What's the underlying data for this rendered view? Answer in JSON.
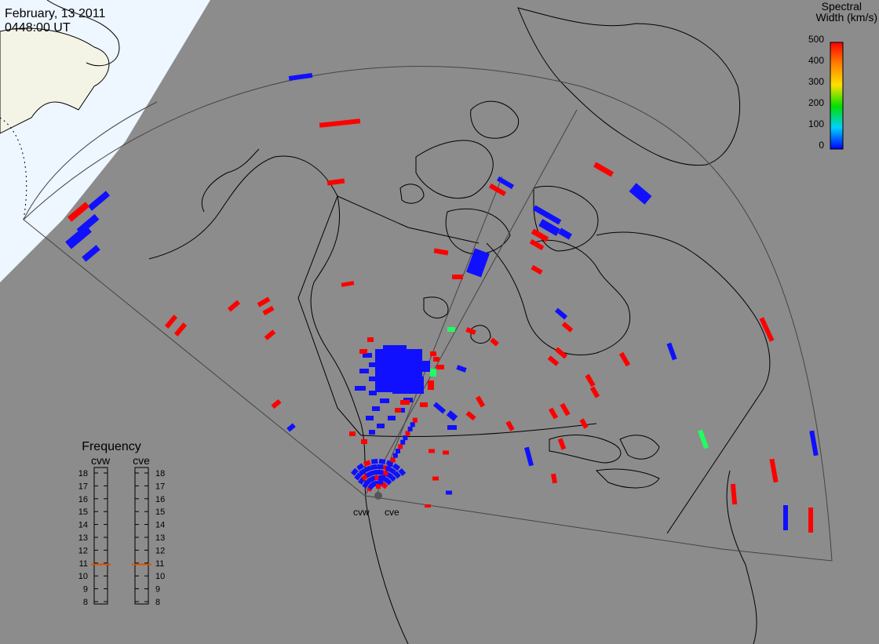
{
  "header": {
    "date": "February, 13 2011",
    "time": "0448:00 UT"
  },
  "colorbar": {
    "title_line1": "Spectral",
    "title_line2": "Width (km/s)",
    "ticks": [
      "500",
      "400",
      "300",
      "200",
      "100",
      "0"
    ],
    "colors": [
      "#ff0000",
      "#ff8000",
      "#ffe000",
      "#00e000",
      "#00d0ff",
      "#0000ff"
    ]
  },
  "radars": {
    "west_label": "cvw",
    "east_label": "cve"
  },
  "frequency_panel": {
    "title": "Frequency",
    "col_left": "cvw",
    "col_right": "cve",
    "levels": [
      "18",
      "17",
      "16",
      "15",
      "14",
      "13",
      "12",
      "11",
      "10",
      "9",
      "8"
    ],
    "cvw_value_mhz": 10.9,
    "cve_value_mhz": 10.9
  },
  "colors": {
    "background": "#8c8c8c",
    "daylight": "#eef6ff",
    "land_daylight": "#f4f4e6",
    "high_width": "#ff0000",
    "low_width": "#1010ff",
    "mid_width": "#20ff60",
    "freq_marker": "#e05000"
  }
}
